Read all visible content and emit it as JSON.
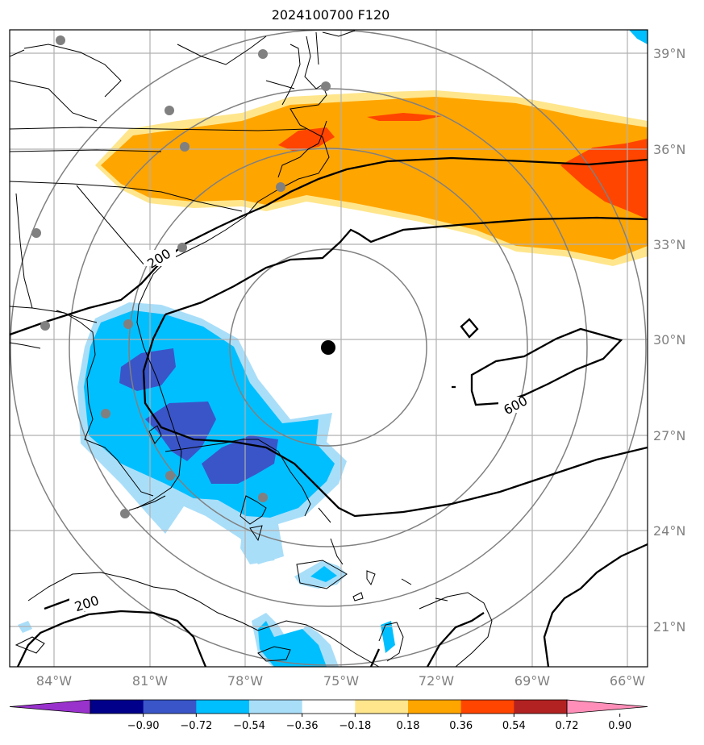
{
  "title": "2024100700 F120",
  "map": {
    "lat_labels": [
      "39°N",
      "36°N",
      "33°N",
      "30°N",
      "27°N",
      "24°N",
      "21°N"
    ],
    "lon_labels": [
      "84°W",
      "81°W",
      "78°W",
      "75°W",
      "72°W",
      "69°W",
      "66°W"
    ],
    "contour_labels": [
      "200",
      "600",
      "200"
    ],
    "center_marker": "storm-center",
    "colors": {
      "deep_blue": "#3a55c8",
      "cyan": "#00bfff",
      "light_blue": "#a9def9",
      "light_yellow": "#ffe68c",
      "orange": "#ffa500",
      "red_orange": "#ff4500"
    }
  },
  "colorbar": {
    "ticks": [
      "−0.90",
      "−0.72",
      "−0.54",
      "−0.36",
      "−0.18",
      "0.18",
      "0.36",
      "0.54",
      "0.72",
      "0.90"
    ],
    "colors": [
      "#9932cc",
      "#00008b",
      "#3a55c8",
      "#00bfff",
      "#a9def9",
      "#ffffff",
      "#ffe68c",
      "#ffa500",
      "#ff4500",
      "#b22222",
      "#ff8fb8"
    ]
  }
}
